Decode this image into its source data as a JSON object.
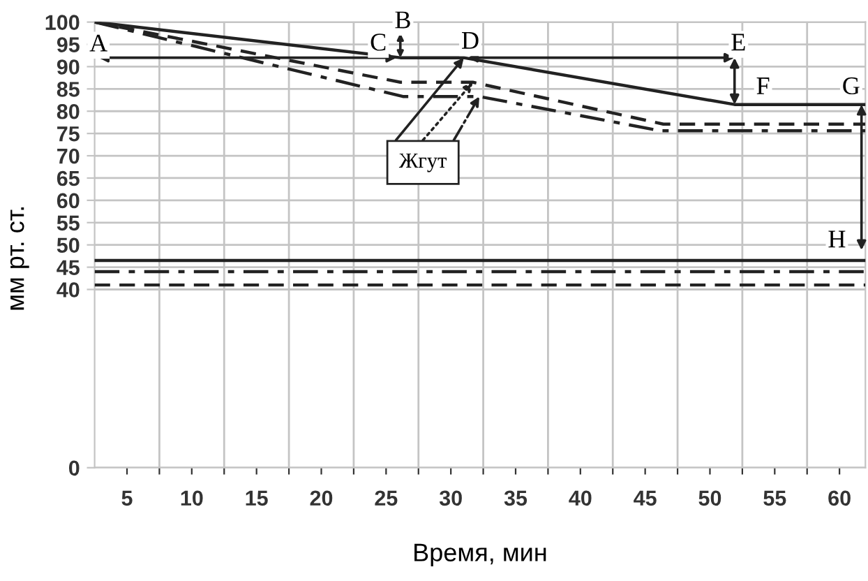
{
  "chart_data": {
    "type": "line",
    "ylabel": "мм рт. ст.",
    "xlabel": "Время, мин",
    "xlim": [
      2.5,
      62
    ],
    "ylim": [
      0,
      100
    ],
    "xticks": [
      5,
      10,
      15,
      20,
      25,
      30,
      35,
      40,
      45,
      50,
      55,
      60,
      {
        "value": 7.5,
        "label": null
      },
      {
        "value": 12.5,
        "label": null
      },
      {
        "value": 17.5,
        "label": null
      },
      {
        "value": 22.5,
        "label": null
      },
      {
        "value": 27.5,
        "label": null
      },
      {
        "value": 32.5,
        "label": null
      },
      {
        "value": 37.5,
        "label": null
      },
      {
        "value": 42.5,
        "label": null
      },
      {
        "value": 47.5,
        "label": null
      },
      {
        "value": 52.5,
        "label": null
      },
      {
        "value": 57.5,
        "label": null
      }
    ],
    "yticks": [
      0,
      40,
      45,
      50,
      55,
      60,
      65,
      70,
      75,
      80,
      85,
      90,
      95,
      100
    ],
    "grid": true,
    "series": [
      {
        "color": "#222222",
        "line_style": "solid",
        "x": [
          2.5,
          26.1,
          31.0,
          51.9,
          62
        ],
        "values": [
          100,
          92,
          92,
          81.5,
          81.5
        ]
      },
      {
        "color": "#222222",
        "line_style": "dashed",
        "x": [
          2.5,
          26.1,
          31.7,
          46.4,
          62
        ],
        "values": [
          100,
          86.5,
          86.5,
          77.1,
          77.1
        ]
      },
      {
        "color": "#222222",
        "line_style": "dashdot",
        "x": [
          2.5,
          26.3,
          32.2,
          46.2,
          62
        ],
        "values": [
          100,
          83.3,
          83.3,
          75.6,
          75.6
        ]
      },
      {
        "color": "#222222",
        "line_style": "solid",
        "x": [
          2.5,
          62
        ],
        "values": [
          46.5,
          46.5
        ]
      },
      {
        "color": "#222222",
        "line_style": "dashdot",
        "x": [
          2.5,
          62
        ],
        "values": [
          44,
          44
        ]
      },
      {
        "color": "#222222",
        "line_style": "dashed",
        "x": [
          2.5,
          62
        ],
        "values": [
          41,
          41
        ]
      }
    ],
    "annotations": [
      {
        "text": "A",
        "x": 2.8,
        "y": 94.8
      },
      {
        "text": "B",
        "x": 26.3,
        "y": 100
      },
      {
        "text": "C",
        "x": 24.4,
        "y": 95
      },
      {
        "text": "D",
        "x": 31.5,
        "y": 95.4
      },
      {
        "text": "E",
        "x": 52.2,
        "y": 95
      },
      {
        "text": "F",
        "x": 54.1,
        "y": 85.2
      },
      {
        "text": "G",
        "x": 60.9,
        "y": 85.2
      },
      {
        "text": "H",
        "x": 59.8,
        "y": 50.8
      },
      {
        "text": "Жгут",
        "x": 31.0,
        "y": 92
      }
    ]
  }
}
